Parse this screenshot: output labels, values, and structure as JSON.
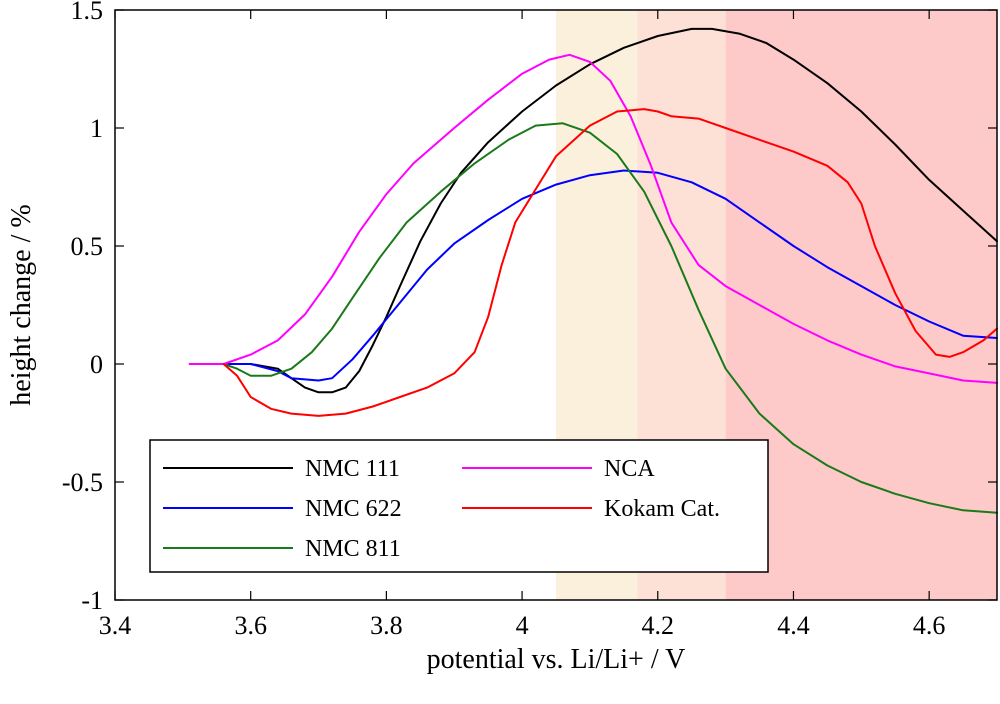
{
  "chart_data": {
    "type": "line",
    "title": "",
    "xlabel": "potential vs. Li/Li+ / V",
    "ylabel": "height change / %",
    "xlim": [
      3.4,
      4.7
    ],
    "ylim": [
      -1,
      1.5
    ],
    "xticks": [
      3.4,
      3.6,
      3.8,
      4.0,
      4.2,
      4.4,
      4.6
    ],
    "xtick_labels": [
      "3.4",
      "3.6",
      "3.8",
      "4",
      "4.2",
      "4.4",
      "4.6"
    ],
    "yticks": [
      -1,
      -0.5,
      0,
      0.5,
      1,
      1.5
    ],
    "ytick_labels": [
      "-1",
      "-0.5",
      "0",
      "0.5",
      "1",
      "1.5"
    ],
    "grid": false,
    "legend_position": "bottom-left",
    "bands": [
      {
        "x0": 4.05,
        "x1": 4.17,
        "color": "#fbf0dc"
      },
      {
        "x0": 4.17,
        "x1": 4.3,
        "color": "#fde0d6"
      },
      {
        "x0": 4.3,
        "x1": 4.7,
        "color": "#fec9c9"
      }
    ],
    "series": [
      {
        "name": "NMC 111",
        "color": "#000000",
        "points": [
          [
            3.56,
            0
          ],
          [
            3.6,
            0
          ],
          [
            3.64,
            -0.02
          ],
          [
            3.66,
            -0.06
          ],
          [
            3.68,
            -0.1
          ],
          [
            3.7,
            -0.12
          ],
          [
            3.72,
            -0.12
          ],
          [
            3.74,
            -0.1
          ],
          [
            3.76,
            -0.03
          ],
          [
            3.78,
            0.08
          ],
          [
            3.8,
            0.2
          ],
          [
            3.82,
            0.33
          ],
          [
            3.85,
            0.52
          ],
          [
            3.88,
            0.68
          ],
          [
            3.91,
            0.81
          ],
          [
            3.95,
            0.94
          ],
          [
            4.0,
            1.07
          ],
          [
            4.05,
            1.18
          ],
          [
            4.1,
            1.27
          ],
          [
            4.15,
            1.34
          ],
          [
            4.2,
            1.39
          ],
          [
            4.25,
            1.42
          ],
          [
            4.28,
            1.42
          ],
          [
            4.32,
            1.4
          ],
          [
            4.36,
            1.36
          ],
          [
            4.4,
            1.29
          ],
          [
            4.45,
            1.19
          ],
          [
            4.5,
            1.07
          ],
          [
            4.55,
            0.93
          ],
          [
            4.6,
            0.78
          ],
          [
            4.65,
            0.65
          ],
          [
            4.7,
            0.52
          ]
        ]
      },
      {
        "name": "NMC 622",
        "color": "#0000ff",
        "points": [
          [
            3.56,
            0
          ],
          [
            3.6,
            0
          ],
          [
            3.64,
            -0.03
          ],
          [
            3.66,
            -0.06
          ],
          [
            3.7,
            -0.07
          ],
          [
            3.72,
            -0.06
          ],
          [
            3.75,
            0.02
          ],
          [
            3.78,
            0.12
          ],
          [
            3.82,
            0.26
          ],
          [
            3.86,
            0.4
          ],
          [
            3.9,
            0.51
          ],
          [
            3.95,
            0.61
          ],
          [
            4.0,
            0.7
          ],
          [
            4.05,
            0.76
          ],
          [
            4.1,
            0.8
          ],
          [
            4.15,
            0.82
          ],
          [
            4.2,
            0.81
          ],
          [
            4.25,
            0.77
          ],
          [
            4.3,
            0.7
          ],
          [
            4.35,
            0.6
          ],
          [
            4.4,
            0.5
          ],
          [
            4.45,
            0.41
          ],
          [
            4.5,
            0.33
          ],
          [
            4.55,
            0.25
          ],
          [
            4.6,
            0.18
          ],
          [
            4.65,
            0.12
          ],
          [
            4.7,
            0.11
          ]
        ]
      },
      {
        "name": "NMC 811",
        "color": "#1a7a1a",
        "points": [
          [
            3.56,
            0
          ],
          [
            3.58,
            -0.02
          ],
          [
            3.6,
            -0.05
          ],
          [
            3.63,
            -0.05
          ],
          [
            3.66,
            -0.02
          ],
          [
            3.69,
            0.05
          ],
          [
            3.72,
            0.15
          ],
          [
            3.75,
            0.28
          ],
          [
            3.79,
            0.45
          ],
          [
            3.83,
            0.6
          ],
          [
            3.88,
            0.73
          ],
          [
            3.93,
            0.85
          ],
          [
            3.98,
            0.95
          ],
          [
            4.02,
            1.01
          ],
          [
            4.06,
            1.02
          ],
          [
            4.1,
            0.98
          ],
          [
            4.14,
            0.89
          ],
          [
            4.18,
            0.73
          ],
          [
            4.22,
            0.5
          ],
          [
            4.26,
            0.23
          ],
          [
            4.3,
            -0.02
          ],
          [
            4.35,
            -0.21
          ],
          [
            4.4,
            -0.34
          ],
          [
            4.45,
            -0.43
          ],
          [
            4.5,
            -0.5
          ],
          [
            4.55,
            -0.55
          ],
          [
            4.6,
            -0.59
          ],
          [
            4.65,
            -0.62
          ],
          [
            4.7,
            -0.63
          ]
        ]
      },
      {
        "name": "NCA",
        "color": "#ff00ff",
        "points": [
          [
            3.51,
            0
          ],
          [
            3.56,
            0
          ],
          [
            3.6,
            0.04
          ],
          [
            3.64,
            0.1
          ],
          [
            3.68,
            0.21
          ],
          [
            3.72,
            0.37
          ],
          [
            3.76,
            0.56
          ],
          [
            3.8,
            0.72
          ],
          [
            3.84,
            0.85
          ],
          [
            3.9,
            1.0
          ],
          [
            3.95,
            1.12
          ],
          [
            4.0,
            1.23
          ],
          [
            4.04,
            1.29
          ],
          [
            4.07,
            1.31
          ],
          [
            4.1,
            1.28
          ],
          [
            4.13,
            1.2
          ],
          [
            4.16,
            1.05
          ],
          [
            4.19,
            0.84
          ],
          [
            4.22,
            0.6
          ],
          [
            4.26,
            0.42
          ],
          [
            4.3,
            0.33
          ],
          [
            4.35,
            0.25
          ],
          [
            4.4,
            0.17
          ],
          [
            4.45,
            0.1
          ],
          [
            4.5,
            0.04
          ],
          [
            4.55,
            -0.01
          ],
          [
            4.6,
            -0.04
          ],
          [
            4.65,
            -0.07
          ],
          [
            4.7,
            -0.08
          ]
        ]
      },
      {
        "name": "Kokam Cat.",
        "color": "#ff0000",
        "points": [
          [
            3.56,
            0
          ],
          [
            3.58,
            -0.05
          ],
          [
            3.6,
            -0.14
          ],
          [
            3.63,
            -0.19
          ],
          [
            3.66,
            -0.21
          ],
          [
            3.7,
            -0.22
          ],
          [
            3.74,
            -0.21
          ],
          [
            3.78,
            -0.18
          ],
          [
            3.82,
            -0.14
          ],
          [
            3.86,
            -0.1
          ],
          [
            3.9,
            -0.04
          ],
          [
            3.93,
            0.05
          ],
          [
            3.95,
            0.2
          ],
          [
            3.97,
            0.42
          ],
          [
            3.99,
            0.6
          ],
          [
            4.02,
            0.74
          ],
          [
            4.05,
            0.88
          ],
          [
            4.1,
            1.01
          ],
          [
            4.14,
            1.07
          ],
          [
            4.18,
            1.08
          ],
          [
            4.2,
            1.07
          ],
          [
            4.22,
            1.05
          ],
          [
            4.26,
            1.04
          ],
          [
            4.3,
            1.0
          ],
          [
            4.35,
            0.95
          ],
          [
            4.4,
            0.9
          ],
          [
            4.45,
            0.84
          ],
          [
            4.48,
            0.77
          ],
          [
            4.5,
            0.68
          ],
          [
            4.52,
            0.5
          ],
          [
            4.55,
            0.3
          ],
          [
            4.58,
            0.14
          ],
          [
            4.61,
            0.04
          ],
          [
            4.63,
            0.03
          ],
          [
            4.65,
            0.05
          ],
          [
            4.68,
            0.1
          ],
          [
            4.7,
            0.15
          ]
        ]
      }
    ]
  }
}
